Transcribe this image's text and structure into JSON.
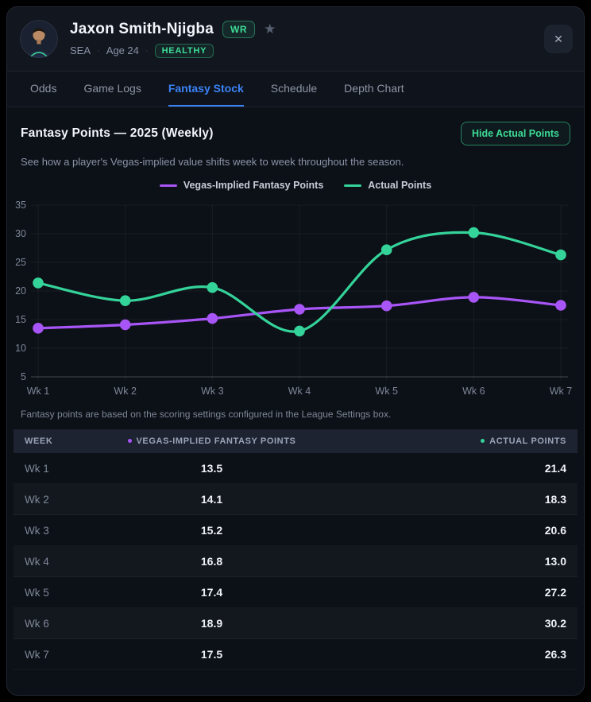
{
  "player": {
    "name": "Jaxon Smith-Njigba",
    "position": "WR",
    "team": "SEA",
    "age": "Age 24",
    "status": "HEALTHY",
    "separator": "·"
  },
  "icons": {
    "star": "★",
    "close": "✕"
  },
  "tabs": [
    {
      "label": "Odds",
      "active": false
    },
    {
      "label": "Game Logs",
      "active": false
    },
    {
      "label": "Fantasy Stock",
      "active": true
    },
    {
      "label": "Schedule",
      "active": false
    },
    {
      "label": "Depth Chart",
      "active": false
    }
  ],
  "section": {
    "title": "Fantasy Points — 2025 (Weekly)",
    "toggle_button_label": "Hide Actual Points",
    "subtitle": "See how a player's Vegas-implied value shifts week to week throughout the season.",
    "footnote": "Fantasy points are based on the scoring settings configured in the League Settings box."
  },
  "colors": {
    "accent_purple": "#a855f7",
    "accent_green": "#34d399",
    "tab_active_blue": "#3b82f6"
  },
  "chart_data": {
    "type": "line",
    "x": [
      "Wk 1",
      "Wk 2",
      "Wk 3",
      "Wk 4",
      "Wk 5",
      "Wk 6",
      "Wk 7"
    ],
    "series": [
      {
        "name": "Vegas-Implied Fantasy Points",
        "color": "#a855f7",
        "values": [
          13.5,
          14.1,
          15.2,
          16.8,
          17.4,
          18.9,
          17.5
        ]
      },
      {
        "name": "Actual Points",
        "color": "#34d399",
        "values": [
          21.4,
          18.3,
          20.6,
          13.0,
          27.2,
          30.2,
          26.3
        ]
      }
    ],
    "ylim": [
      5,
      35
    ],
    "yticks": [
      5,
      10,
      15,
      20,
      25,
      30,
      35
    ],
    "grid": true,
    "smooth": true,
    "legend_position": "top"
  },
  "table": {
    "columns": [
      {
        "label": "WEEK"
      },
      {
        "label": "VEGAS-IMPLIED FANTASY POINTS"
      },
      {
        "label": "ACTUAL POINTS"
      }
    ],
    "rows": [
      {
        "week": "Wk 1",
        "vegas": "13.5",
        "actual": "21.4"
      },
      {
        "week": "Wk 2",
        "vegas": "14.1",
        "actual": "18.3"
      },
      {
        "week": "Wk 3",
        "vegas": "15.2",
        "actual": "20.6"
      },
      {
        "week": "Wk 4",
        "vegas": "16.8",
        "actual": "13.0"
      },
      {
        "week": "Wk 5",
        "vegas": "17.4",
        "actual": "27.2"
      },
      {
        "week": "Wk 6",
        "vegas": "18.9",
        "actual": "30.2"
      },
      {
        "week": "Wk 7",
        "vegas": "17.5",
        "actual": "26.3"
      }
    ]
  }
}
